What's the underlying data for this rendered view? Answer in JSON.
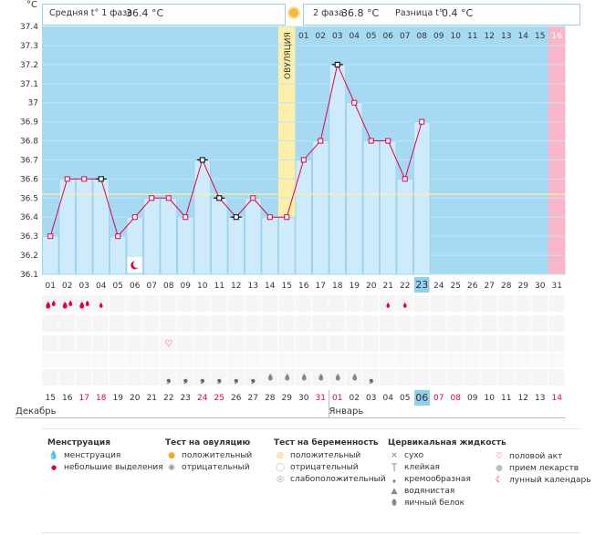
{
  "header": {
    "unit": "°C",
    "phase1_label": "Средняя t° 1 фаза",
    "phase1_value": "36.4 °C",
    "phase2_label": "2 фаза",
    "phase2_value": "36.8 °C",
    "diff_label": "Разница t°",
    "diff_value": "0.4 °C"
  },
  "ovulation_label": "ОВУЛЯЦИЯ",
  "chart_data": {
    "type": "line",
    "title": "",
    "ylabel": "°C",
    "xlabel": "",
    "ylim": [
      36.1,
      37.4
    ],
    "yticks": [
      "37.4",
      "37.3",
      "37.2",
      "37.1",
      "37",
      "36.9",
      "36.8",
      "36.7",
      "36.6",
      "36.5",
      "36.4",
      "36.3",
      "36.2",
      "36.1"
    ],
    "cover_line": 36.52,
    "ovulation_index": 14,
    "cycle_days": [
      "01",
      "02",
      "03",
      "04",
      "05",
      "06",
      "07",
      "08",
      "09",
      "10",
      "11",
      "12",
      "13",
      "14",
      "15",
      "16",
      "17",
      "18",
      "19",
      "20",
      "21",
      "22",
      "23",
      "24",
      "25",
      "26",
      "27",
      "28",
      "29",
      "30",
      "31"
    ],
    "luteal_days": [
      "01",
      "02",
      "03",
      "04",
      "05",
      "06",
      "07",
      "08",
      "09",
      "10",
      "11",
      "12",
      "13",
      "14",
      "15",
      "16"
    ],
    "dates": [
      "15",
      "16",
      "17",
      "18",
      "19",
      "20",
      "21",
      "22",
      "23",
      "24",
      "25",
      "26",
      "27",
      "28",
      "29",
      "30",
      "31",
      "01",
      "02",
      "03",
      "04",
      "05",
      "06",
      "07",
      "08",
      "09",
      "10",
      "11",
      "12",
      "13",
      "14"
    ],
    "weekend_indices": [
      2,
      3,
      9,
      10,
      16,
      17,
      23,
      24,
      30
    ],
    "today_index": 22,
    "next_cycle_index": 30,
    "month_left": "Декабрь",
    "month_right": "Январь",
    "series": [
      {
        "name": "Температура",
        "values": [
          36.3,
          36.6,
          36.6,
          36.6,
          36.3,
          36.4,
          36.5,
          36.5,
          36.4,
          36.7,
          36.5,
          36.4,
          36.5,
          36.4,
          36.4,
          36.7,
          36.8,
          37.2,
          37.0,
          36.8,
          36.8,
          36.6,
          36.9,
          null,
          null,
          null,
          null,
          null,
          null,
          null,
          null
        ],
        "black_markers": [
          3,
          9,
          10,
          11,
          17
        ]
      }
    ],
    "menstruation": {
      "heavy": [
        0,
        1,
        2
      ],
      "light": [
        3,
        20,
        21
      ]
    },
    "moon_index": 5,
    "intercourse_index": 7,
    "mucus_creamy": [
      7,
      8,
      9,
      10,
      11,
      12,
      19
    ],
    "mucus_watery": [
      13,
      14,
      15,
      16,
      17,
      18
    ]
  },
  "legend": {
    "menstruation": {
      "title": "Менструация",
      "items": [
        "менструация",
        "небольшие выделения"
      ]
    },
    "ovulation_test": {
      "title": "Тест на овуляцию",
      "items": [
        "положительный",
        "отрицательный"
      ]
    },
    "pregnancy_test": {
      "title": "Тест на беременность",
      "items": [
        "положительный",
        "отрицательный",
        "слабоположительный"
      ]
    },
    "cervical": {
      "title": "Цервикальная жидкость",
      "items": [
        "сухо",
        "клейкая",
        "кремообразная",
        "водянистая",
        "яичный белок"
      ]
    },
    "other": {
      "items": [
        "половой акт",
        "прием лекарств",
        "лунный календарь"
      ]
    }
  },
  "colors": {
    "bg_blue": "#a6daf2",
    "bar_light": "#cdebfa",
    "bar_edge": "#8fcbea",
    "ovulation": "#fdefaa",
    "next_cycle": "#f8b6c8",
    "line": "#e2004c",
    "weekend": "#e2004c",
    "today": "#8fd0ea"
  }
}
